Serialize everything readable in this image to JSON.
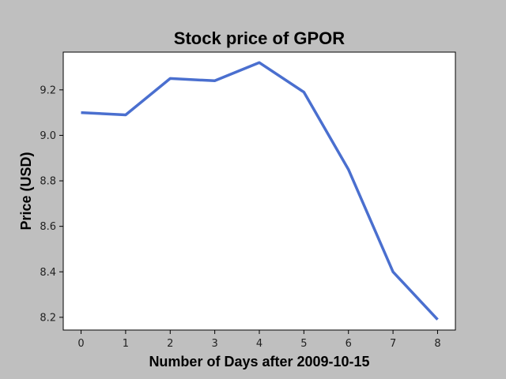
{
  "chart_data": {
    "type": "line",
    "title": "Stock price of GPOR",
    "xlabel": "Number of Days after 2009-10-15",
    "ylabel": "Price (USD)",
    "x": [
      0,
      1,
      2,
      3,
      4,
      5,
      6,
      7,
      8
    ],
    "series": [
      {
        "values": [
          9.1,
          9.09,
          9.25,
          9.24,
          9.32,
          9.19,
          8.85,
          8.4,
          8.19
        ]
      }
    ],
    "xticks": [
      0,
      1,
      2,
      3,
      4,
      5,
      6,
      7,
      8
    ],
    "xtick_labels": [
      "0",
      "1",
      "2",
      "3",
      "4",
      "5",
      "6",
      "7",
      "8"
    ],
    "yticks": [
      8.2,
      8.4,
      8.6,
      8.8,
      9.0,
      9.2
    ],
    "ytick_labels": [
      "8.2",
      "8.4",
      "8.6",
      "8.8",
      "9.0",
      "9.2"
    ],
    "xlim": [
      -0.4,
      8.4
    ],
    "ylim": [
      8.144,
      9.366
    ],
    "grid": false,
    "line_color": "#4a6fcf",
    "background_color": "#bfbfbf",
    "plot_background_color": "#ffffff"
  }
}
